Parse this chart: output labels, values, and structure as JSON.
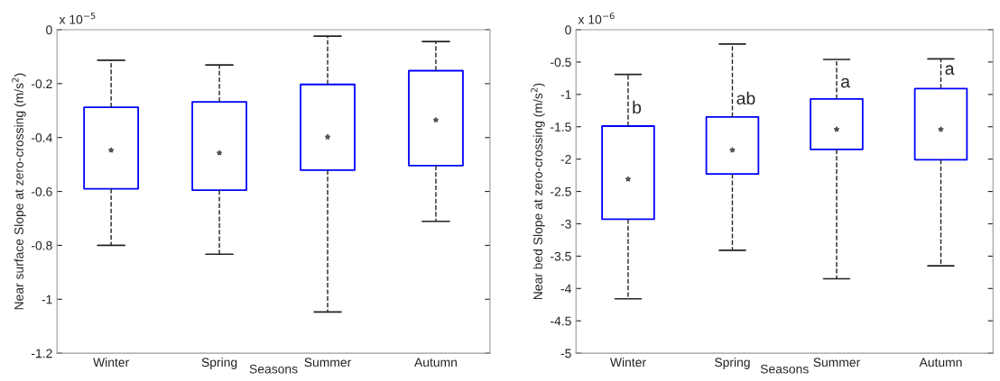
{
  "chart_data": [
    {
      "type": "box",
      "xlabel": "Seasons",
      "ylabel": "Near surface Slope at zero-crossing (m/s$^{2}$)",
      "categories": [
        "Winter",
        "Spring",
        "Summer",
        "Autumn"
      ],
      "boxes": [
        {
          "low": -0.8,
          "q1": -0.59,
          "median": -0.447,
          "q3": -0.288,
          "high": -0.113
        },
        {
          "low": -0.833,
          "q1": -0.595,
          "median": -0.457,
          "q3": -0.268,
          "high": -0.131
        },
        {
          "low": -1.047,
          "q1": -0.521,
          "median": -0.398,
          "q3": -0.203,
          "high": -0.024
        },
        {
          "low": -0.711,
          "q1": -0.504,
          "median": -0.335,
          "q3": -0.152,
          "high": -0.044
        }
      ],
      "color": "#0000ff",
      "ylim": [
        -1.2,
        0
      ],
      "yticks": [
        -1.2,
        -1,
        -0.8,
        -0.6,
        -0.4,
        -0.2,
        0
      ],
      "annotations": [
        "x 10$^{−5}$"
      ],
      "grid": false
    },
    {
      "type": "box",
      "xlabel": "Seasons",
      "ylabel": "Near bed Slope at zero-crossing (m/s$^{2}$)",
      "categories": [
        "Winter",
        "Spring",
        "Summer",
        "Autumn"
      ],
      "boxes": [
        {
          "low": -4.16,
          "q1": -2.93,
          "median": -2.31,
          "q3": -1.49,
          "high": -0.69
        },
        {
          "low": -3.41,
          "q1": -2.23,
          "median": -1.86,
          "q3": -1.35,
          "high": -0.22
        },
        {
          "low": -3.85,
          "q1": -1.85,
          "median": -1.54,
          "q3": -1.07,
          "high": -0.46
        },
        {
          "low": -3.65,
          "q1": -2.01,
          "median": -1.54,
          "q3": -0.91,
          "high": -0.45
        }
      ],
      "color": "#0000ff",
      "ylim": [
        -5,
        0
      ],
      "yticks": [
        -5,
        -4.5,
        -4,
        -3.5,
        -3,
        -2.5,
        -2,
        -1.5,
        -1,
        -0.5,
        0
      ],
      "annotations": [
        "x 10$^{−6}$",
        {
          "text": "b",
          "x": "Winter",
          "y": -1.35
        },
        {
          "text": "ab",
          "x": "Spring",
          "y": -1.21
        },
        {
          "text": "a",
          "x": "Summer",
          "y": -0.95
        },
        {
          "text": "a",
          "x": "Autumn",
          "y": -0.75
        }
      ],
      "grid": false
    }
  ]
}
